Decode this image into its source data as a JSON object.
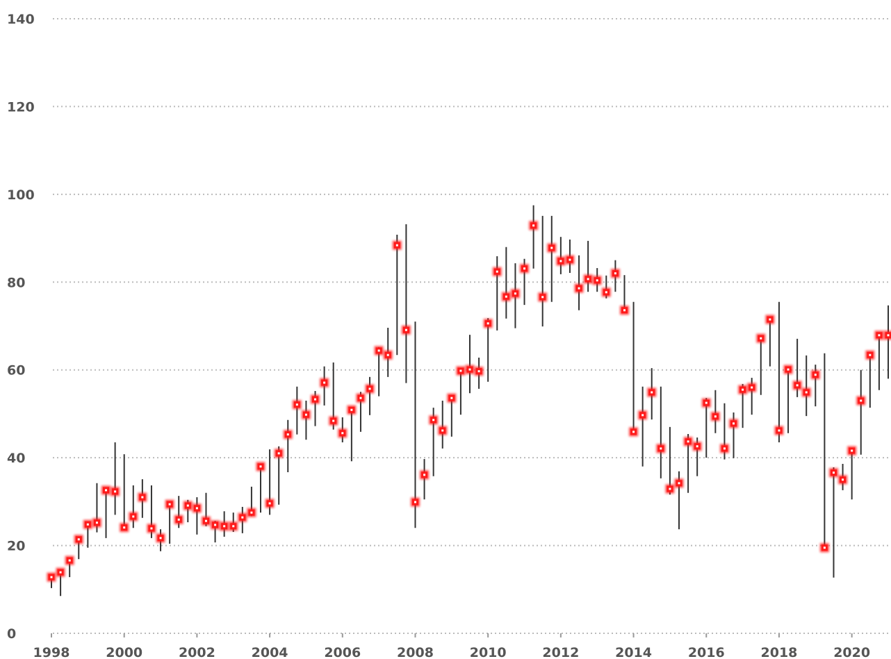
{
  "chart_data": {
    "type": "range-dot",
    "x": [
      1998,
      1998.25,
      1998.5,
      1998.75,
      1999,
      1999.25,
      1999.5,
      1999.75,
      2000,
      2000.25,
      2000.5,
      2000.75,
      2001,
      2001.25,
      2001.5,
      2001.75,
      2002,
      2002.25,
      2002.5,
      2002.75,
      2003,
      2003.25,
      2003.5,
      2003.75,
      2004,
      2004.25,
      2004.5,
      2004.75,
      2005,
      2005.25,
      2005.5,
      2005.75,
      2006,
      2006.25,
      2006.5,
      2006.75,
      2007,
      2007.25,
      2007.5,
      2007.75,
      2008,
      2008.25,
      2008.5,
      2008.75,
      2009,
      2009.25,
      2009.5,
      2009.75,
      2010,
      2010.25,
      2010.5,
      2010.75,
      2011,
      2011.25,
      2011.5,
      2011.75,
      2012,
      2012.25,
      2012.5,
      2012.75,
      2013,
      2013.25,
      2013.5,
      2013.75,
      2014,
      2014.25,
      2014.5,
      2014.75,
      2015,
      2015.25,
      2015.5,
      2015.75,
      2016,
      2016.25,
      2016.5,
      2016.75,
      2017,
      2017.25,
      2017.5,
      2017.75,
      2018,
      2018.25,
      2018.5,
      2018.75,
      2019,
      2019.25,
      2019.5,
      2019.75,
      2020,
      2020.25,
      2020.5,
      2020.75,
      2021
    ],
    "values": [
      12.8,
      13.9,
      16.6,
      21.4,
      24.8,
      25.2,
      32.6,
      32.3,
      24.1,
      26.6,
      31.0,
      23.9,
      21.7,
      29.4,
      25.9,
      29.1,
      28.5,
      25.6,
      24.7,
      24.4,
      24.4,
      26.4,
      27.5,
      38.0,
      29.6,
      41.0,
      45.3,
      52.1,
      49.8,
      53.3,
      57.1,
      48.4,
      45.6,
      50.9,
      53.6,
      55.7,
      64.4,
      63.4,
      88.4,
      69.1,
      29.9,
      36.1,
      48.6,
      46.2,
      53.6,
      59.8,
      60.1,
      59.7,
      70.6,
      82.4,
      76.7,
      77.4,
      83.1,
      92.9,
      76.6,
      87.8,
      84.8,
      85.1,
      78.6,
      80.7,
      80.4,
      77.7,
      82.0,
      73.6,
      45.9,
      49.7,
      54.9,
      42.1,
      32.9,
      34.2,
      43.7,
      42.6,
      52.5,
      49.4,
      42.1,
      47.8,
      55.5,
      56.0,
      67.2,
      71.5,
      46.2,
      60.1,
      56.5,
      54.9,
      58.9,
      19.5,
      36.6,
      35.0,
      41.6,
      53.0,
      63.4,
      67.9,
      67.9
    ],
    "low": [
      10.3,
      8.5,
      12.8,
      16.9,
      19.5,
      23.0,
      21.7,
      27.0,
      24.0,
      24.0,
      26.3,
      21.7,
      18.7,
      20.4,
      24.0,
      25.3,
      22.5,
      24.4,
      20.7,
      22.0,
      23.1,
      22.8,
      26.7,
      27.5,
      27.0,
      29.3,
      36.7,
      45.3,
      44.1,
      47.2,
      51.9,
      46.4,
      43.5,
      39.2,
      45.9,
      49.7,
      54.0,
      58.4,
      63.4,
      57.0,
      24.0,
      30.5,
      35.8,
      42.1,
      44.8,
      49.8,
      54.7,
      55.7,
      57.3,
      69.0,
      71.7,
      69.5,
      74.8,
      83.1,
      69.9,
      75.5,
      81.8,
      82.1,
      73.6,
      77.8,
      77.8,
      76.3,
      77.8,
      73.6,
      45.9,
      38.0,
      48.7,
      35.3,
      31.6,
      23.7,
      32.0,
      35.8,
      40.0,
      45.6,
      39.6,
      39.9,
      46.8,
      49.8,
      54.3,
      60.8,
      43.5,
      45.6,
      53.8,
      49.5,
      51.7,
      19.5,
      12.7,
      32.6,
      30.5,
      40.7,
      51.4,
      55.4,
      58.0
    ],
    "high": [
      13.3,
      14.0,
      16.6,
      21.4,
      25.0,
      34.2,
      33.0,
      43.5,
      40.8,
      33.7,
      35.1,
      33.7,
      23.7,
      29.4,
      31.3,
      30.4,
      31.0,
      32.0,
      25.6,
      27.8,
      27.5,
      28.8,
      33.4,
      38.0,
      41.9,
      42.6,
      48.6,
      56.2,
      53.0,
      55.2,
      60.8,
      61.7,
      49.2,
      50.9,
      55.0,
      58.4,
      65.2,
      69.6,
      90.8,
      93.2,
      71.0,
      39.7,
      51.4,
      53.0,
      54.1,
      59.8,
      68.0,
      62.8,
      71.8,
      85.9,
      88.0,
      84.3,
      85.3,
      97.5,
      95.1,
      95.1,
      90.3,
      89.7,
      86.1,
      89.4,
      83.2,
      81.5,
      85.0,
      81.6,
      75.5,
      56.2,
      60.4,
      56.2,
      47.0,
      36.9,
      45.4,
      44.6,
      53.6,
      55.4,
      52.4,
      50.3,
      56.8,
      58.2,
      67.2,
      71.5,
      75.5,
      60.1,
      67.1,
      63.3,
      61.2,
      63.8,
      37.8,
      38.6,
      41.6,
      60.0,
      63.4,
      67.9,
      74.7
    ],
    "color": "#ff1a1a",
    "range_color": "#333333",
    "xlim": [
      1998,
      2021
    ],
    "xticks": [
      1998,
      2000,
      2002,
      2004,
      2006,
      2008,
      2010,
      2012,
      2014,
      2016,
      2018,
      2020
    ],
    "ylim": [
      0,
      140
    ],
    "yticks": [
      0,
      20,
      40,
      60,
      80,
      100,
      120,
      140
    ],
    "grid": true
  }
}
